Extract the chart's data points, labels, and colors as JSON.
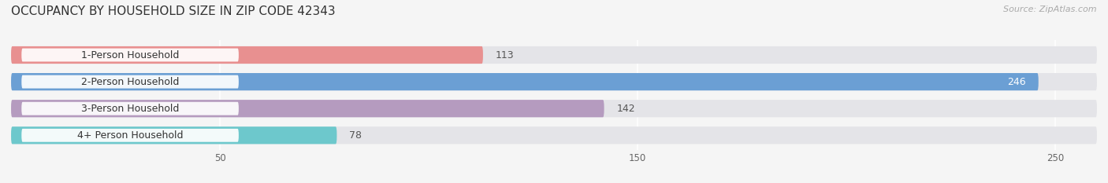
{
  "title": "OCCUPANCY BY HOUSEHOLD SIZE IN ZIP CODE 42343",
  "source": "Source: ZipAtlas.com",
  "categories": [
    "1-Person Household",
    "2-Person Household",
    "3-Person Household",
    "4+ Person Household"
  ],
  "values": [
    113,
    246,
    142,
    78
  ],
  "bar_colors": [
    "#e89090",
    "#6b9fd4",
    "#b59bbf",
    "#6dc8cc"
  ],
  "bar_bg_color": "#e4e4e8",
  "xlim": [
    0,
    260
  ],
  "xticks": [
    50,
    150,
    250
  ],
  "figsize": [
    14.06,
    2.33
  ],
  "dpi": 100,
  "bg_color": "#f5f5f5",
  "value_color_inside": "#ffffff",
  "value_color_outside": "#555555",
  "title_fontsize": 11,
  "source_fontsize": 8,
  "label_fontsize": 9,
  "value_fontsize": 9
}
